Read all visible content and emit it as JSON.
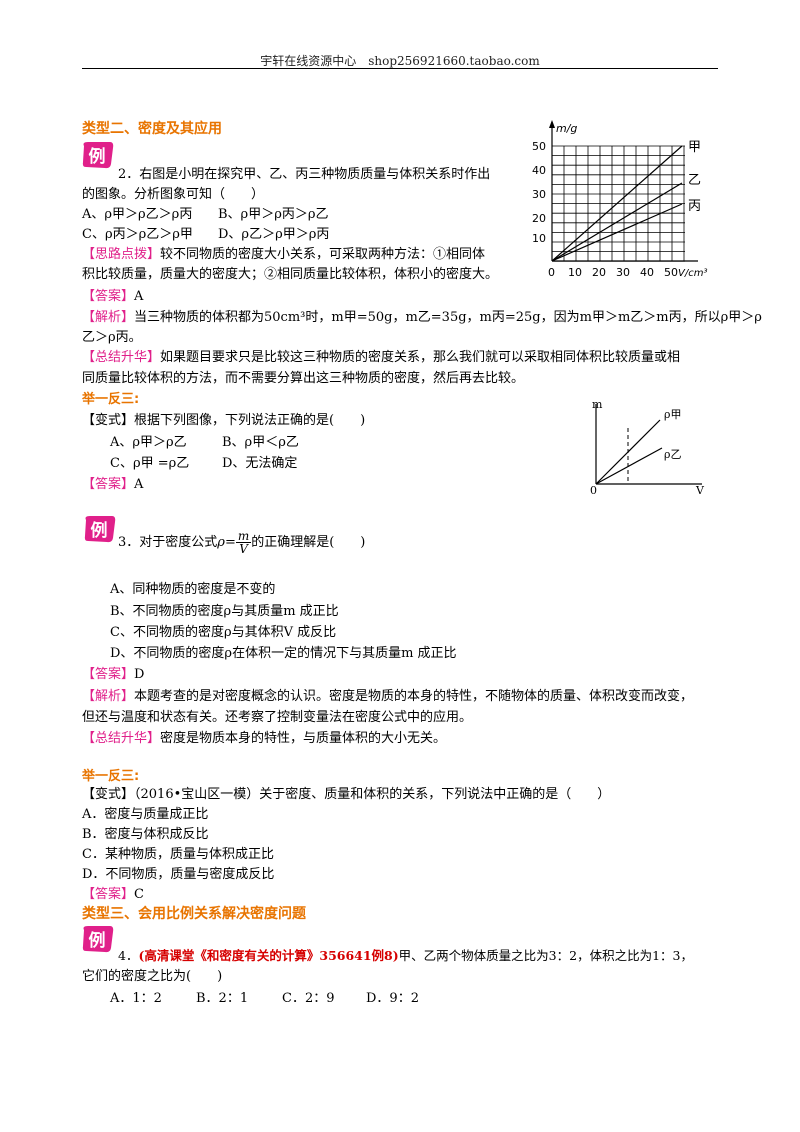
{
  "header": {
    "text": "宇轩在线资源中心　shop256921660.taobao.com"
  },
  "badge": "例",
  "section2": {
    "title": "类型二、密度及其应用",
    "q2": {
      "line1": "2．右图是小明在探究甲、乙、丙三种物质质量与体积关系时作出",
      "line2": "的图象。分析图象可知（　　）",
      "optA": "A、ρ甲＞ρ乙＞ρ丙",
      "optB": "B、ρ甲＞ρ丙＞ρ乙",
      "optC": "C、ρ丙＞ρ乙＞ρ甲",
      "optD": "D、ρ乙＞ρ甲＞ρ丙",
      "hint_tag": "【思路点拨】",
      "hint1": "较不同物质的密度大小关系，可采取两种方法：①相同体",
      "hint2": "积比较质量，质量大的密度大；②相同质量比较体积，体积小的密度大。",
      "ans_tag": "【答案】",
      "ans": "A",
      "ana_tag": "【解析】",
      "ana1": "当三种物质的体积都为50cm³时，m甲=50g，m乙=35g，m丙=25g，因为m甲＞m乙＞m丙，所以ρ甲＞ρ",
      "ana2": "乙＞ρ丙。",
      "sum_tag": "【总结升华】",
      "sum1": "如果题目要求只是比较这三种物质的密度关系，那么我们就可以采取相同体积比较质量或相",
      "sum2": "同质量比较体积的方法，而不需要分算出这三种物质的密度，然后再去比较。"
    },
    "chart": {
      "ylabel": "m/g",
      "xlabel": "V/cm³",
      "yticks": [
        "50",
        "40",
        "30",
        "20",
        "10"
      ],
      "xticks": [
        "0",
        "10",
        "20",
        "30",
        "40",
        "50"
      ],
      "labels": [
        "甲",
        "乙",
        "丙"
      ]
    },
    "ex1": {
      "title": "举一反三:",
      "q": "【变式】根据下列图像，下列说法正确的是(　　)",
      "optA": "A、ρ甲＞ρ乙",
      "optB": "B、ρ甲＜ρ乙",
      "optC": "C、ρ甲 =ρ乙",
      "optD": "D、无法确定",
      "ans_tag": "【答案】",
      "ans": "A"
    },
    "fig2": {
      "m": "m",
      "v": "V",
      "o": "0",
      "rho_a": "ρ甲",
      "rho_b": "ρ乙"
    },
    "q3": {
      "pre": "3．对于密度公式",
      "rho": "ρ",
      "eq": "=",
      "num": "m",
      "den": "V",
      "post": "的正确理解是(　　)",
      "optA": "A、同种物质的密度是不变的",
      "optB": "B、不同物质的密度ρ与其质量m  成正比",
      "optC": "C、不同物质的密度ρ与其体积V  成反比",
      "optD": "D、不同物质的密度ρ在体积一定的情况下与其质量m  成正比",
      "ans_tag": "【答案】",
      "ans": "D",
      "ana_tag": "【解析】",
      "ana1": "本题考查的是对密度概念的认识。密度是物质的本身的特性，不随物体的质量、体积改变而改变，",
      "ana2": "但还与温度和状态有关。还考察了控制变量法在密度公式中的应用。",
      "sum_tag": "【总结升华】",
      "sum": "密度是物质本身的特性，与质量体积的大小无关。"
    },
    "ex2": {
      "title": "举一反三:",
      "q": "【变式】（2016•宝山区一模）关于密度、质量和体积的关系，下列说法中正确的是（　　）",
      "optA": "A．密度与质量成正比",
      "optB": "B．密度与体积成反比",
      "optC": "C．某种物质，质量与体积成正比",
      "optD": "D．不同物质，质量与密度成反比",
      "ans_tag": "【答案】",
      "ans": "C"
    }
  },
  "section3": {
    "title": "类型三、会用比例关系解决密度问题",
    "q4": {
      "num": "4．",
      "tag": "(高清课堂《和密度有关的计算》356641例8)",
      "text1": "甲、乙两个物体质量之比为3：2，体积之比为1：3，",
      "text2": "它们的密度之比为(　　)",
      "optA": "A．1：2",
      "optB": "B．2：1",
      "optC": "C．2：9",
      "optD": "D．9：2"
    }
  }
}
